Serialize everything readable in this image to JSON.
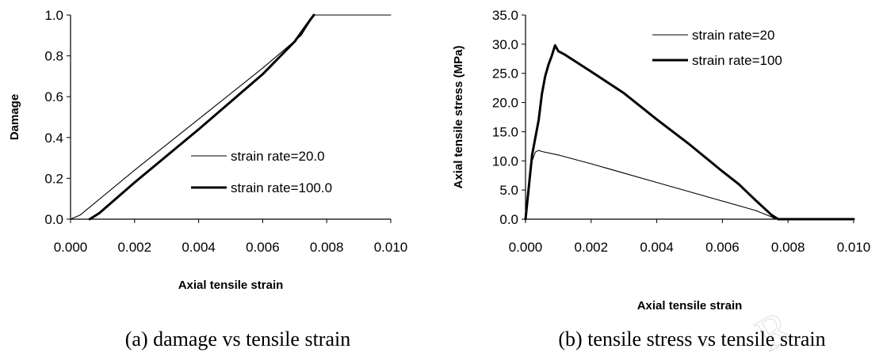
{
  "chart_data": [
    {
      "type": "line",
      "caption": "(a) damage vs tensile strain",
      "xlabel": "Axial tensile strain",
      "ylabel": "Damage",
      "xlim": [
        0,
        0.01
      ],
      "ylim": [
        0,
        1.0
      ],
      "xticks": [
        "0.000",
        "0.002",
        "0.004",
        "0.006",
        "0.008",
        "0.010"
      ],
      "yticks": [
        "0.0",
        "0.2",
        "0.4",
        "0.6",
        "0.8",
        "1.0"
      ],
      "grid": false,
      "legend_position": "right-lower",
      "series": [
        {
          "name": "strain rate=20.0",
          "line": "thin",
          "x": [
            0,
            0.0003,
            0.002,
            0.004,
            0.006,
            0.0072,
            0.0076,
            0.01
          ],
          "y": [
            0,
            0.02,
            0.24,
            0.49,
            0.74,
            0.9,
            1.0,
            1.0
          ]
        },
        {
          "name": "strain rate=100.0",
          "line": "thick",
          "x": [
            0.0006,
            0.0009,
            0.002,
            0.004,
            0.006,
            0.007,
            0.0075,
            0.0076
          ],
          "y": [
            0,
            0.03,
            0.18,
            0.44,
            0.71,
            0.87,
            0.98,
            1.0
          ]
        }
      ]
    },
    {
      "type": "line",
      "caption": "(b) tensile stress vs tensile strain",
      "xlabel": "Axial tensile strain",
      "ylabel": "Axial tensile stress (MPa)",
      "xlim": [
        0,
        0.01
      ],
      "ylim": [
        0,
        35
      ],
      "xticks": [
        "0.000",
        "0.002",
        "0.004",
        "0.006",
        "0.008",
        "0.010"
      ],
      "yticks": [
        "0.0",
        "5.0",
        "10.0",
        "15.0",
        "20.0",
        "25.0",
        "30.0",
        "35.0"
      ],
      "grid": false,
      "legend_position": "top-right",
      "series": [
        {
          "name": "strain rate=20",
          "line": "thin",
          "x": [
            0,
            0.0001,
            0.0002,
            0.0003,
            0.0004,
            0.0005,
            0.001,
            0.002,
            0.003,
            0.004,
            0.005,
            0.006,
            0.007,
            0.0075,
            0.0076,
            0.008,
            0.01
          ],
          "y": [
            0,
            6,
            10,
            11.5,
            11.8,
            11.6,
            11.0,
            9.5,
            7.9,
            6.3,
            4.7,
            3.1,
            1.5,
            0.4,
            0,
            0,
            0
          ]
        },
        {
          "name": "strain rate=100",
          "line": "thick",
          "x": [
            0,
            0.0002,
            0.0004,
            0.0005,
            0.0006,
            0.0007,
            0.0008,
            0.0009,
            0.001,
            0.0012,
            0.002,
            0.003,
            0.004,
            0.005,
            0.006,
            0.0065,
            0.007,
            0.0075,
            0.0077,
            0.008,
            0.01
          ],
          "y": [
            0,
            11,
            17,
            21.5,
            24.5,
            26.5,
            28.0,
            29.8,
            28.8,
            28.2,
            25.3,
            21.6,
            17.1,
            12.8,
            8.2,
            6.0,
            3.3,
            0.7,
            0,
            0,
            0
          ]
        }
      ]
    }
  ]
}
